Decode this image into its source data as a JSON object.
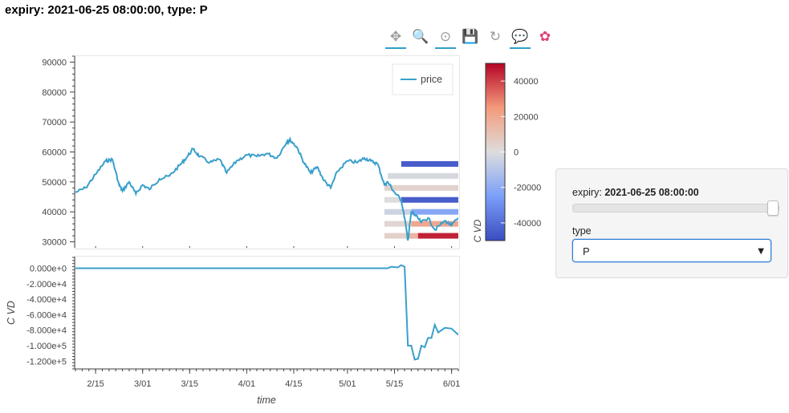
{
  "page_title": "expiry: 2021-06-25 08:00:00, type: P",
  "toolbar": {
    "tools": [
      {
        "name": "pan-icon",
        "glyph": "✥",
        "active": true
      },
      {
        "name": "box-zoom-icon",
        "glyph": "🔍",
        "active": false
      },
      {
        "name": "wheel-zoom-icon",
        "glyph": "⊙",
        "active": true
      },
      {
        "name": "save-icon",
        "glyph": "💾",
        "active": false
      },
      {
        "name": "reset-icon",
        "glyph": "↻",
        "active": false
      },
      {
        "name": "hover-icon",
        "glyph": "💬",
        "active": true
      },
      {
        "name": "bokeh-logo-icon",
        "glyph": "✿",
        "active": false
      }
    ]
  },
  "widgets": {
    "expiry_label": "expiry:",
    "expiry_value": "2021-06-25 08:00:00",
    "type_label": "type",
    "type_value": "P"
  },
  "chart_data": [
    {
      "type": "line",
      "panel": "price",
      "legend": {
        "entries": [
          "price"
        ],
        "placement": "top-right"
      },
      "ylim": [
        28000,
        92000
      ],
      "yticks": [
        30000,
        40000,
        50000,
        60000,
        70000,
        80000,
        90000
      ],
      "ytick_labels": [
        "30000",
        "40000",
        "50000",
        "60000",
        "70000",
        "80000",
        "90000"
      ],
      "xlim": [
        "2021-02-09",
        "2021-06-03"
      ],
      "series": [
        {
          "name": "price",
          "color": "#3a9fcb",
          "x": [
            "2021-02-09",
            "2021-02-12",
            "2021-02-15",
            "2021-02-18",
            "2021-02-20",
            "2021-02-22",
            "2021-02-23",
            "2021-02-25",
            "2021-02-27",
            "2021-03-01",
            "2021-03-03",
            "2021-03-06",
            "2021-03-09",
            "2021-03-12",
            "2021-03-14",
            "2021-03-16",
            "2021-03-18",
            "2021-03-21",
            "2021-03-24",
            "2021-03-26",
            "2021-03-29",
            "2021-04-01",
            "2021-04-04",
            "2021-04-07",
            "2021-04-10",
            "2021-04-13",
            "2021-04-14",
            "2021-04-16",
            "2021-04-18",
            "2021-04-20",
            "2021-04-22",
            "2021-04-24",
            "2021-04-26",
            "2021-04-28",
            "2021-05-01",
            "2021-05-04",
            "2021-05-06",
            "2021-05-08",
            "2021-05-10",
            "2021-05-12",
            "2021-05-13",
            "2021-05-15",
            "2021-05-17",
            "2021-05-18",
            "2021-05-19",
            "2021-05-20",
            "2021-05-21",
            "2021-05-23",
            "2021-05-25",
            "2021-05-27",
            "2021-05-30",
            "2021-06-01",
            "2021-06-03"
          ],
          "y": [
            46500,
            48000,
            52500,
            57000,
            57500,
            49000,
            47000,
            50000,
            46000,
            49000,
            47500,
            51000,
            52000,
            55500,
            58000,
            61000,
            58500,
            56500,
            57500,
            53000,
            57000,
            59000,
            58500,
            59500,
            58000,
            63500,
            64000,
            61500,
            56500,
            53000,
            55000,
            50500,
            48000,
            53500,
            57000,
            56500,
            58000,
            57000,
            56000,
            49000,
            50000,
            46500,
            44000,
            38000,
            30500,
            40000,
            39000,
            36500,
            38000,
            34000,
            37000,
            35500,
            38000
          ]
        }
      ]
    },
    {
      "type": "heatmap",
      "panel": "price-overlay",
      "xlim": [
        "2021-05-12",
        "2021-06-04"
      ],
      "note": "strike levels colored by C VD, overlaid on price panel",
      "cells": [
        {
          "y": 56000,
          "from": "2021-05-17",
          "to": "2021-06-04",
          "value": -45000
        },
        {
          "y": 52000,
          "from": "2021-05-13",
          "to": "2021-06-04",
          "value": -2000
        },
        {
          "y": 48000,
          "from": "2021-05-12",
          "to": "2021-06-04",
          "value": 4000
        },
        {
          "y": 44000,
          "from": "2021-05-12",
          "to": "2021-05-17",
          "value": 0
        },
        {
          "y": 44000,
          "from": "2021-05-17",
          "to": "2021-06-04",
          "value": -45000
        },
        {
          "y": 40000,
          "from": "2021-05-12",
          "to": "2021-05-20",
          "value": -4000
        },
        {
          "y": 40000,
          "from": "2021-05-20",
          "to": "2021-06-04",
          "value": -22000
        },
        {
          "y": 36000,
          "from": "2021-05-12",
          "to": "2021-05-20",
          "value": 3000
        },
        {
          "y": 36000,
          "from": "2021-05-20",
          "to": "2021-06-04",
          "value": 20000
        },
        {
          "y": 32000,
          "from": "2021-05-12",
          "to": "2021-05-19",
          "value": 5000
        },
        {
          "y": 32000,
          "from": "2021-05-19",
          "to": "2021-05-22",
          "value": 15000
        },
        {
          "y": 32000,
          "from": "2021-05-22",
          "to": "2021-06-04",
          "value": 45000
        }
      ]
    },
    {
      "type": "line",
      "panel": "cvd",
      "ylabel": "C VD",
      "xlabel": "time",
      "ylim": [
        -130000,
        15000
      ],
      "yticks": [
        0,
        -20000,
        -40000,
        -60000,
        -80000,
        -100000,
        -120000
      ],
      "ytick_labels": [
        "0.000e+0",
        "-2.000e+4",
        "-4.000e+4",
        "-6.000e+4",
        "-8.000e+4",
        "-1.000e+5",
        "-1.200e+5"
      ],
      "xlim": [
        "2021-02-09",
        "2021-06-03"
      ],
      "xticks": [
        "2021-02-15",
        "2021-03-01",
        "2021-03-15",
        "2021-04-01",
        "2021-04-15",
        "2021-05-01",
        "2021-05-15",
        "2021-06-01"
      ],
      "xtick_labels": [
        "2/15",
        "3/01",
        "3/15",
        "4/01",
        "4/15",
        "5/01",
        "5/15",
        "6/01"
      ],
      "series": [
        {
          "name": "C VD",
          "color": "#3a9fcb",
          "x": [
            "2021-02-09",
            "2021-05-13",
            "2021-05-14",
            "2021-05-16",
            "2021-05-17",
            "2021-05-18",
            "2021-05-19",
            "2021-05-20",
            "2021-05-21",
            "2021-05-22",
            "2021-05-23",
            "2021-05-24",
            "2021-05-25",
            "2021-05-26",
            "2021-05-27",
            "2021-05-28",
            "2021-05-30",
            "2021-06-01",
            "2021-06-03"
          ],
          "y": [
            0,
            0,
            2000,
            1000,
            4000,
            2000,
            -100000,
            -100000,
            -118000,
            -117000,
            -100000,
            -102000,
            -90000,
            -90000,
            -73000,
            -83000,
            -77000,
            -78000,
            -86000
          ]
        }
      ]
    },
    {
      "type": "colorbar",
      "label": "C VD",
      "range": [
        -50000,
        50000
      ],
      "ticks": [
        40000,
        20000,
        0,
        -20000,
        -40000
      ],
      "tick_labels": [
        "40000",
        "20000",
        "0",
        "-20000",
        "-40000"
      ],
      "colors": {
        "low": "#3a4cc0",
        "mid": "#dddddd",
        "high": "#b40426"
      }
    }
  ]
}
